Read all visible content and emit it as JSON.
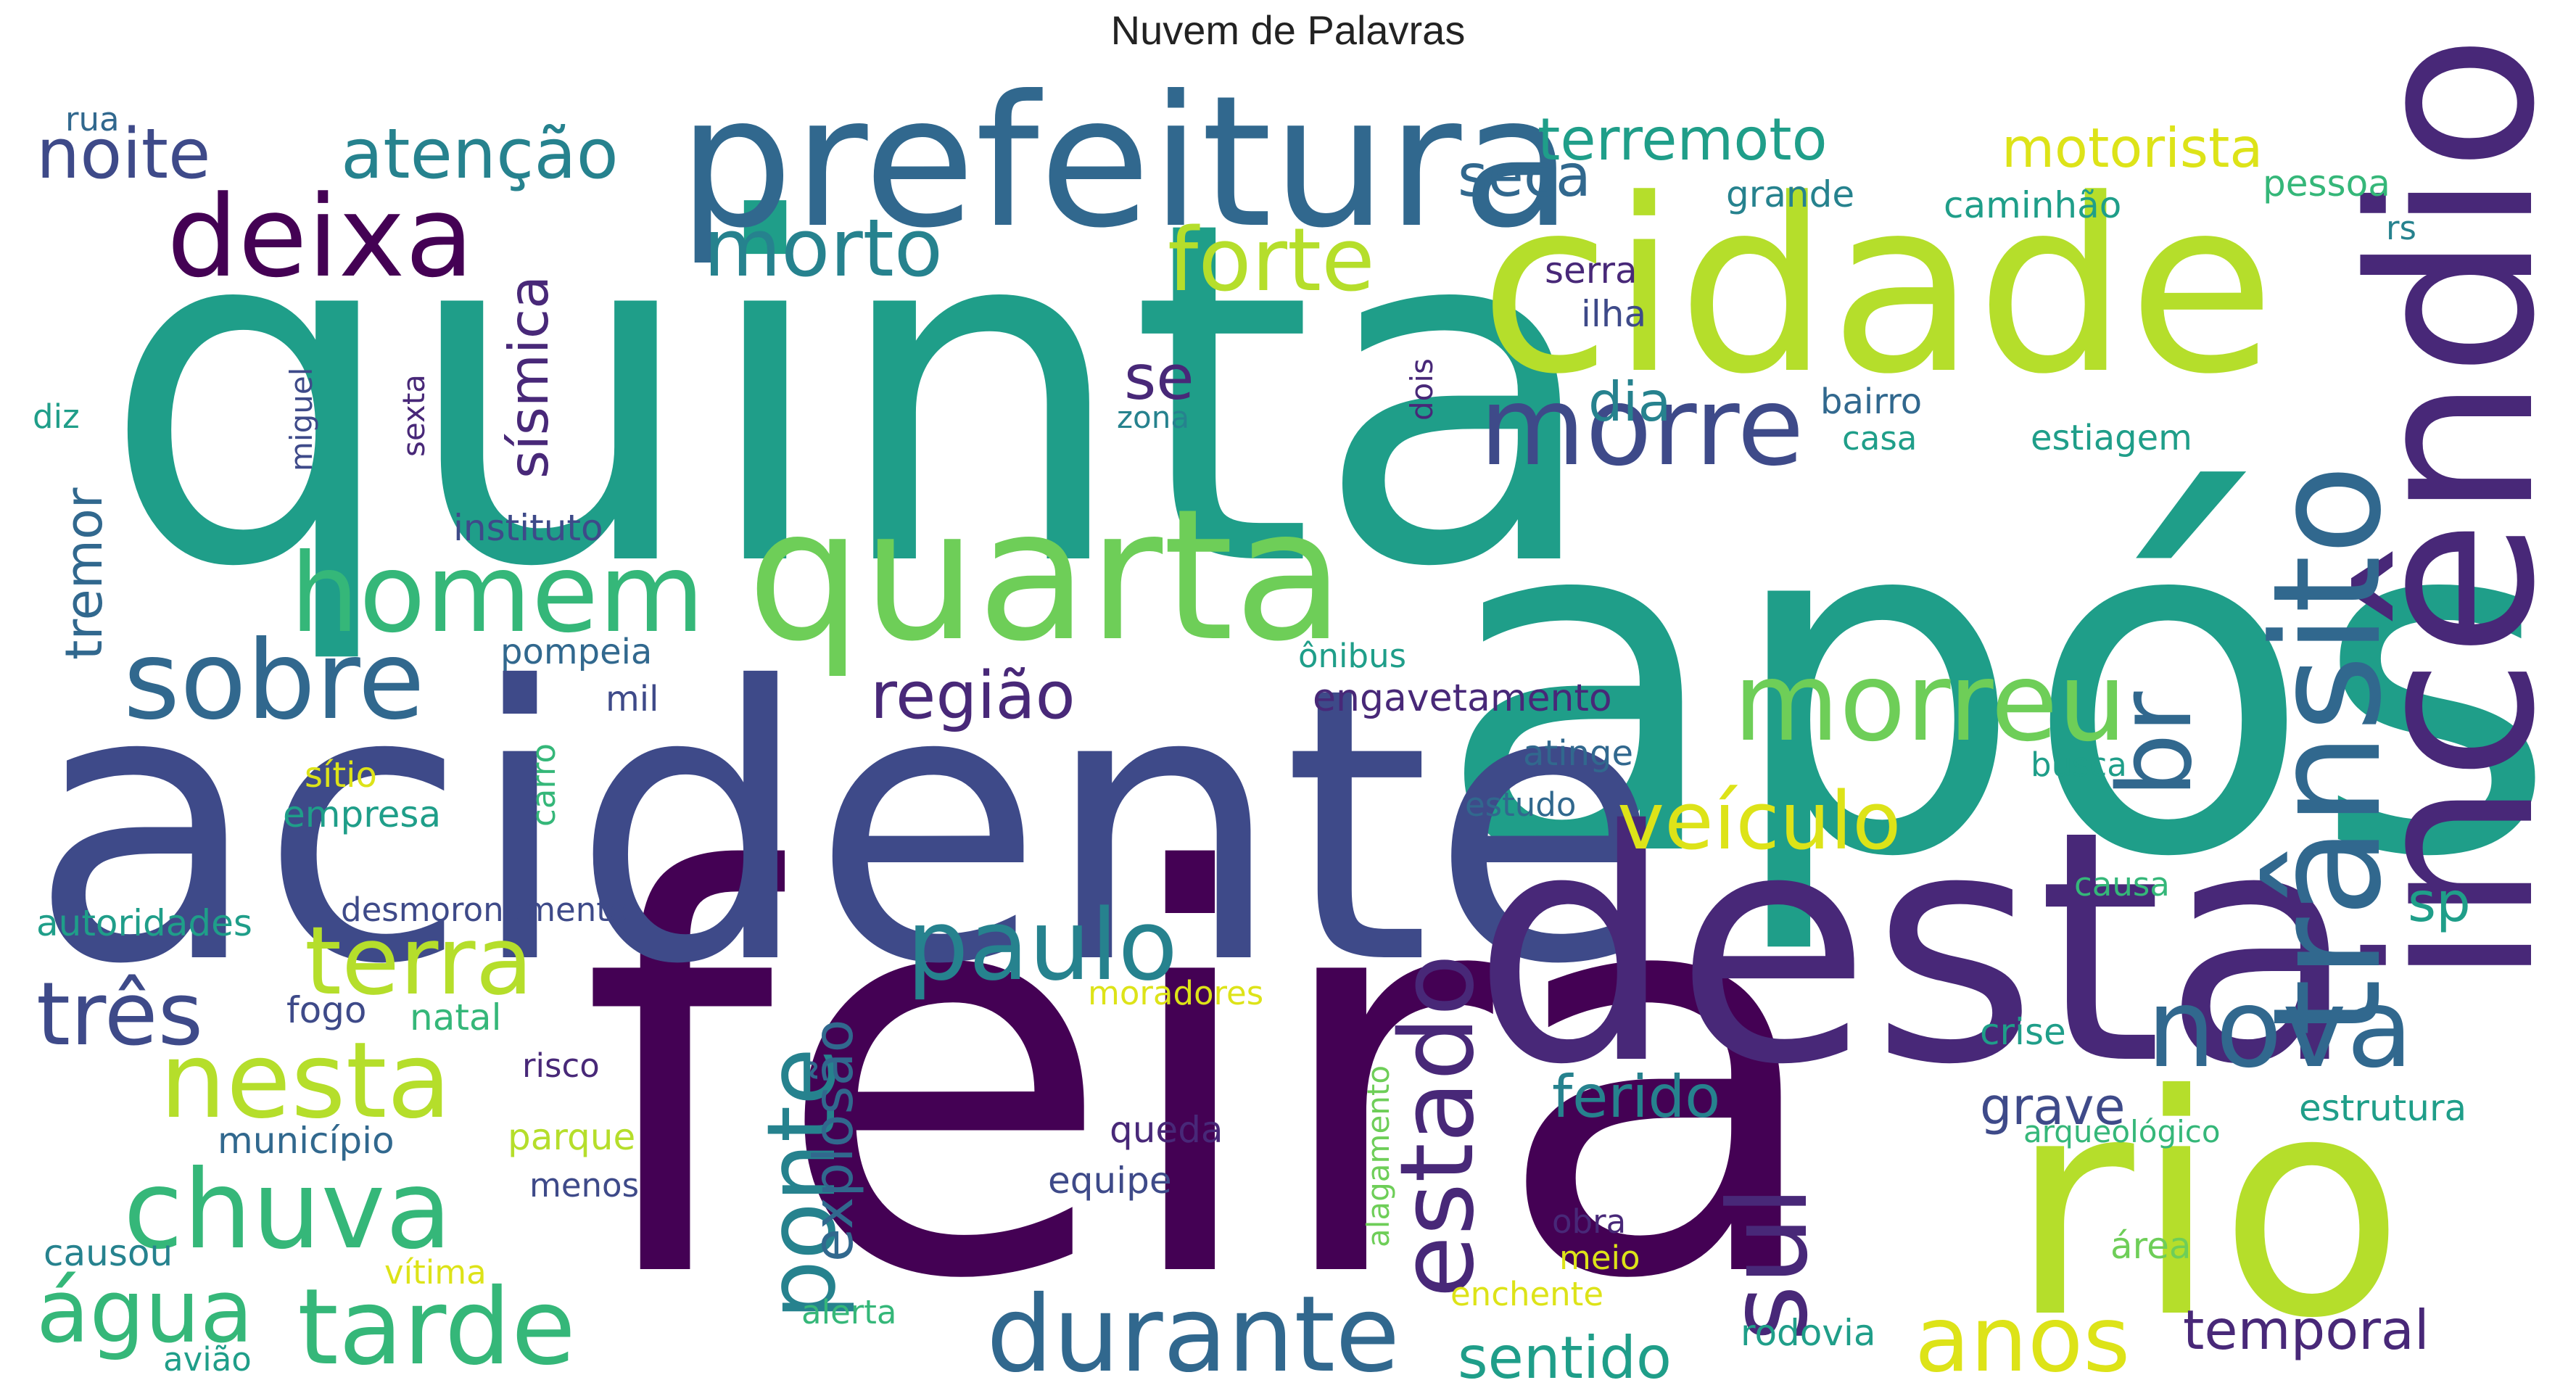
{
  "title": "Nuvem de Palavras",
  "colors": {
    "dark_purple": "#440154",
    "indigo": "#482878",
    "slate_blue": "#3e4a89",
    "steel_blue": "#31688e",
    "teal_blue": "#26828e",
    "teal": "#1f9e89",
    "green_teal": "#35b779",
    "green": "#6ece58",
    "lime": "#b5de2b",
    "yellow": "#dde318"
  },
  "words": [
    {
      "text": "feira",
      "color": "dark_purple"
    },
    {
      "text": "quinta",
      "color": "teal"
    },
    {
      "text": "após",
      "color": "teal"
    },
    {
      "text": "acidente",
      "color": "slate_blue"
    },
    {
      "text": "desta",
      "color": "indigo"
    },
    {
      "text": "cidade",
      "color": "lime"
    },
    {
      "text": "rio",
      "color": "lime"
    },
    {
      "text": "incêndio",
      "color": "indigo"
    },
    {
      "text": "prefeitura",
      "color": "steel_blue"
    },
    {
      "text": "quarta",
      "color": "green"
    },
    {
      "text": "trânsito",
      "color": "steel_blue"
    },
    {
      "text": "deixa",
      "color": "dark_purple"
    },
    {
      "text": "morre",
      "color": "slate_blue"
    },
    {
      "text": "homem",
      "color": "green_teal"
    },
    {
      "text": "morreu",
      "color": "green"
    },
    {
      "text": "sobre",
      "color": "steel_blue"
    },
    {
      "text": "durante",
      "color": "steel_blue"
    },
    {
      "text": "nova",
      "color": "steel_blue"
    },
    {
      "text": "paulo",
      "color": "teal_blue"
    },
    {
      "text": "estado",
      "color": "indigo"
    },
    {
      "text": "ponte",
      "color": "teal_blue"
    },
    {
      "text": "sul",
      "color": "indigo"
    },
    {
      "text": "chuva",
      "color": "green_teal"
    },
    {
      "text": "nesta",
      "color": "lime"
    },
    {
      "text": "terra",
      "color": "lime"
    },
    {
      "text": "tarde",
      "color": "green_teal"
    },
    {
      "text": "água",
      "color": "green_teal"
    },
    {
      "text": "três",
      "color": "slate_blue"
    },
    {
      "text": "anos",
      "color": "yellow"
    },
    {
      "text": "forte",
      "color": "lime"
    },
    {
      "text": "morto",
      "color": "teal_blue"
    },
    {
      "text": "veículo",
      "color": "yellow"
    },
    {
      "text": "br",
      "color": "steel_blue"
    },
    {
      "text": "noite",
      "color": "slate_blue"
    },
    {
      "text": "atenção",
      "color": "teal_blue"
    },
    {
      "text": "região",
      "color": "indigo"
    },
    {
      "text": "sísmica",
      "color": "indigo"
    },
    {
      "text": "terremoto",
      "color": "teal"
    },
    {
      "text": "motorista",
      "color": "yellow"
    },
    {
      "text": "seca",
      "color": "steel_blue"
    },
    {
      "text": "dia",
      "color": "teal_blue"
    },
    {
      "text": "se",
      "color": "indigo"
    },
    {
      "text": "explosão",
      "color": "steel_blue"
    },
    {
      "text": "ferido",
      "color": "teal_blue"
    },
    {
      "text": "grave",
      "color": "slate_blue"
    },
    {
      "text": "temporal",
      "color": "indigo"
    },
    {
      "text": "sentido",
      "color": "teal"
    },
    {
      "text": "sp",
      "color": "teal"
    },
    {
      "text": "tremor",
      "color": "steel_blue"
    },
    {
      "text": "engavetamento",
      "color": "indigo"
    },
    {
      "text": "grande",
      "color": "teal_blue"
    },
    {
      "text": "caminhão",
      "color": "teal"
    },
    {
      "text": "pessoa",
      "color": "green_teal"
    },
    {
      "text": "rs",
      "color": "teal_blue"
    },
    {
      "text": "serra",
      "color": "indigo"
    },
    {
      "text": "ilha",
      "color": "slate_blue"
    },
    {
      "text": "rua",
      "color": "steel_blue"
    },
    {
      "text": "diz",
      "color": "teal"
    },
    {
      "text": "miguel",
      "color": "slate_blue"
    },
    {
      "text": "sexta",
      "color": "indigo"
    },
    {
      "text": "dois",
      "color": "indigo"
    },
    {
      "text": "bairro",
      "color": "steel_blue"
    },
    {
      "text": "zona",
      "color": "teal_blue"
    },
    {
      "text": "casa",
      "color": "teal"
    },
    {
      "text": "estiagem",
      "color": "teal"
    },
    {
      "text": "instituto",
      "color": "slate_blue"
    },
    {
      "text": "pompeia",
      "color": "steel_blue"
    },
    {
      "text": "mil",
      "color": "slate_blue"
    },
    {
      "text": "ônibus",
      "color": "teal"
    },
    {
      "text": "carro",
      "color": "green_teal"
    },
    {
      "text": "sítio",
      "color": "yellow"
    },
    {
      "text": "empresa",
      "color": "teal"
    },
    {
      "text": "atinge",
      "color": "steel_blue"
    },
    {
      "text": "estudo",
      "color": "steel_blue"
    },
    {
      "text": "busca",
      "color": "teal"
    },
    {
      "text": "autoridades",
      "color": "teal"
    },
    {
      "text": "desmoronamento",
      "color": "slate_blue"
    },
    {
      "text": "fogo",
      "color": "slate_blue"
    },
    {
      "text": "natal",
      "color": "green_teal"
    },
    {
      "text": "moradores",
      "color": "yellow"
    },
    {
      "text": "causa",
      "color": "green_teal"
    },
    {
      "text": "crise",
      "color": "teal"
    },
    {
      "text": "estrutura",
      "color": "teal"
    },
    {
      "text": "arqueológico",
      "color": "green_teal"
    },
    {
      "text": "risco",
      "color": "indigo"
    },
    {
      "text": "alagamento",
      "color": "green"
    },
    {
      "text": "município",
      "color": "steel_blue"
    },
    {
      "text": "parque",
      "color": "lime"
    },
    {
      "text": "queda",
      "color": "indigo"
    },
    {
      "text": "menos",
      "color": "slate_blue"
    },
    {
      "text": "equipe",
      "color": "slate_blue"
    },
    {
      "text": "obra",
      "color": "indigo"
    },
    {
      "text": "meio",
      "color": "yellow"
    },
    {
      "text": "área",
      "color": "green"
    },
    {
      "text": "causou",
      "color": "teal_blue"
    },
    {
      "text": "vítima",
      "color": "yellow"
    },
    {
      "text": "enchente",
      "color": "yellow"
    },
    {
      "text": "alerta",
      "color": "green_teal"
    },
    {
      "text": "rodovia",
      "color": "teal"
    },
    {
      "text": "avião",
      "color": "teal"
    }
  ]
}
